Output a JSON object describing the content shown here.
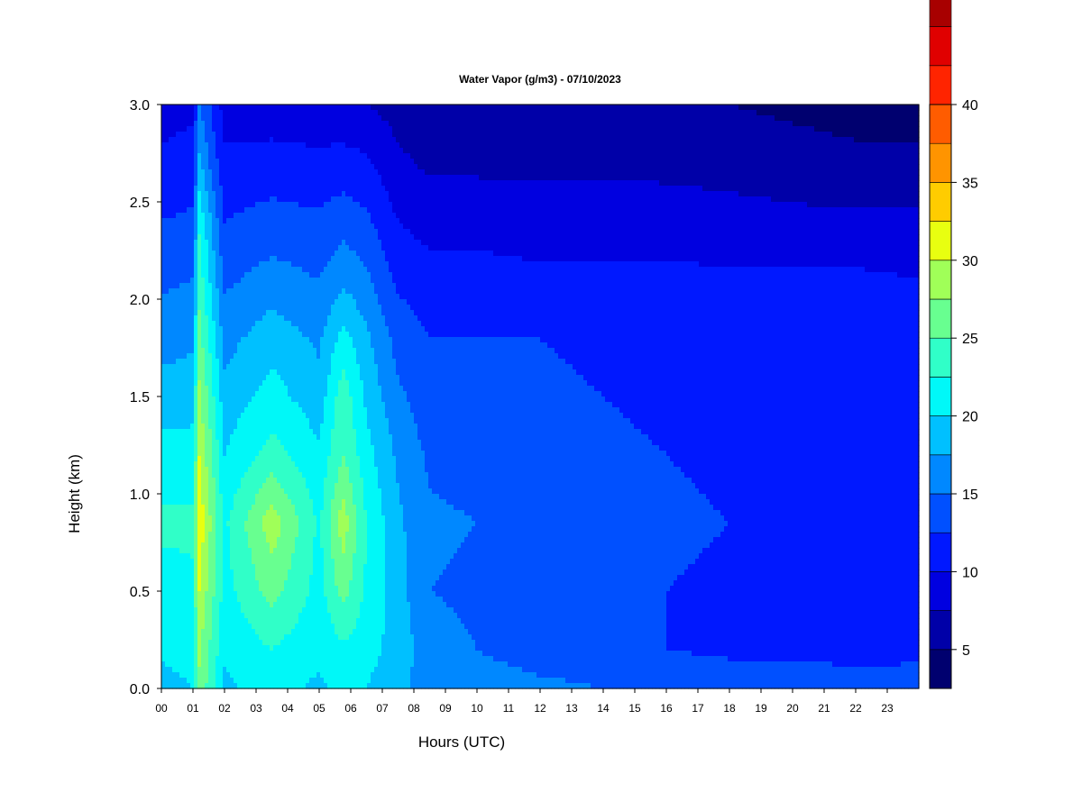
{
  "chart_data": {
    "type": "heatmap",
    "title": "Water Vapor (g/m3) - 07/10/2023",
    "xlabel": "Hours (UTC)",
    "ylabel": "Height (km)",
    "x_ticks": [
      "00",
      "01",
      "02",
      "03",
      "04",
      "05",
      "06",
      "07",
      "08",
      "09",
      "10",
      "11",
      "12",
      "13",
      "14",
      "15",
      "16",
      "17",
      "18",
      "19",
      "20",
      "21",
      "22",
      "23"
    ],
    "y_ticks": [
      "0.0",
      "0.5",
      "1.0",
      "1.5",
      "2.0",
      "2.5",
      "3.0"
    ],
    "xlim": [
      0,
      24
    ],
    "ylim": [
      0.0,
      3.0
    ],
    "colorbar": {
      "ticks": [
        "5",
        "10",
        "15",
        "20",
        "25",
        "30",
        "35",
        "40"
      ],
      "range": [
        2.5,
        40
      ],
      "step": 2.5,
      "colors": [
        "#00006f",
        "#0000a8",
        "#0000e0",
        "#0018ff",
        "#0050ff",
        "#0088ff",
        "#00c0ff",
        "#00f8f8",
        "#30ffc8",
        "#68ff90",
        "#a0ff58",
        "#e8ff10",
        "#ffcc00",
        "#ff9400",
        "#ff5c00",
        "#ff2400",
        "#e00000",
        "#a80000",
        "#700000"
      ]
    },
    "x": [
      0.0,
      1.0,
      1.2,
      2.0,
      3.5,
      5.0,
      5.75,
      6.5,
      7.5,
      8.5,
      10.0,
      12.0,
      14.0,
      16.0,
      18.0,
      20.0,
      22.0,
      24.0
    ],
    "y": [
      0.0,
      0.2,
      0.5,
      0.85,
      1.2,
      1.5,
      1.8,
      2.1,
      2.4,
      2.7,
      3.0
    ],
    "values": [
      [
        19.0,
        20.0,
        27.0,
        19.5,
        21.0,
        19.5,
        21.0,
        20.0,
        18.0,
        16.5,
        16.0,
        15.5,
        15.0,
        14.5,
        14.0,
        14.0,
        13.8,
        13.5
      ],
      [
        20.5,
        21.0,
        28.0,
        20.5,
        22.5,
        20.5,
        22.0,
        21.0,
        19.0,
        16.0,
        15.0,
        14.0,
        13.5,
        12.5,
        12.0,
        12.0,
        11.5,
        12.0
      ],
      [
        21.5,
        22.0,
        30.0,
        21.5,
        26.0,
        21.5,
        26.0,
        22.0,
        18.5,
        15.0,
        14.5,
        13.5,
        13.0,
        12.5,
        12.0,
        11.5,
        11.0,
        11.5
      ],
      [
        23.0,
        23.0,
        32.0,
        22.0,
        29.0,
        22.0,
        29.0,
        22.5,
        18.0,
        15.5,
        15.0,
        14.0,
        13.5,
        13.0,
        12.5,
        12.5,
        12.0,
        12.0
      ],
      [
        21.0,
        21.0,
        30.0,
        20.0,
        23.5,
        20.5,
        25.0,
        21.0,
        17.0,
        14.5,
        14.0,
        13.5,
        13.0,
        12.5,
        12.0,
        12.0,
        12.0,
        11.5
      ],
      [
        18.5,
        19.0,
        28.0,
        18.5,
        21.0,
        18.5,
        24.0,
        19.5,
        15.5,
        13.5,
        13.5,
        13.0,
        12.5,
        12.0,
        12.0,
        12.0,
        12.0,
        11.5
      ],
      [
        16.5,
        17.0,
        26.0,
        16.5,
        19.0,
        17.0,
        21.0,
        18.0,
        14.0,
        12.5,
        12.5,
        12.5,
        12.0,
        12.0,
        12.0,
        12.0,
        12.0,
        11.5
      ],
      [
        14.5,
        15.0,
        24.0,
        14.5,
        16.0,
        15.0,
        17.0,
        15.5,
        12.0,
        11.0,
        11.0,
        10.5,
        10.5,
        10.5,
        10.5,
        10.5,
        10.5,
        10.0
      ],
      [
        12.5,
        13.0,
        22.0,
        12.5,
        13.5,
        13.0,
        14.0,
        13.0,
        10.0,
        9.0,
        9.0,
        8.8,
        8.8,
        8.8,
        8.5,
        8.2,
        8.0,
        8.0
      ],
      [
        10.5,
        11.0,
        18.0,
        10.5,
        11.0,
        10.5,
        11.0,
        10.5,
        8.0,
        7.0,
        7.0,
        7.0,
        7.0,
        6.8,
        6.5,
        6.0,
        5.5,
        5.5
      ],
      [
        9.0,
        9.5,
        15.0,
        9.0,
        8.5,
        8.5,
        8.0,
        7.5,
        6.5,
        6.0,
        6.0,
        6.0,
        5.8,
        5.5,
        5.0,
        4.5,
        4.2,
        4.2
      ]
    ]
  }
}
